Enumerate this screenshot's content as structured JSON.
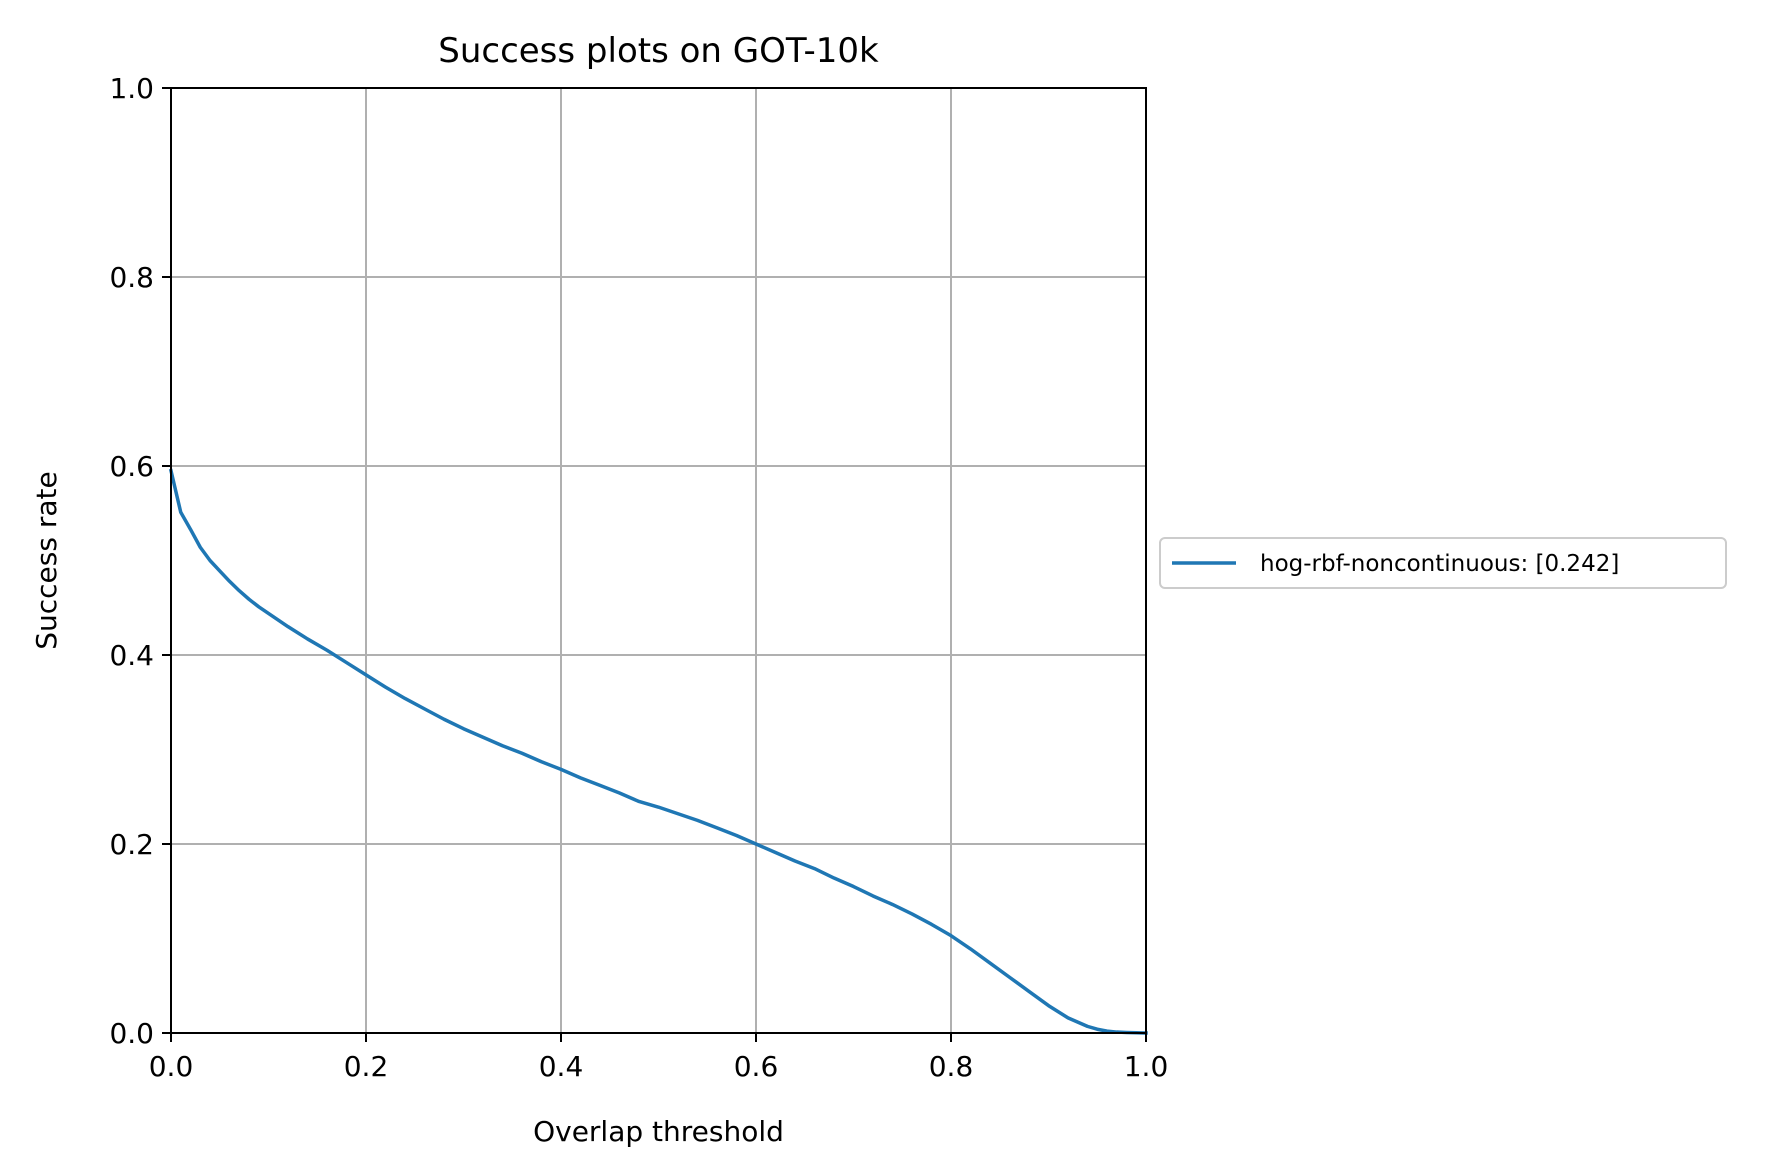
{
  "chart_data": {
    "type": "line",
    "title": "Success plots on GOT-10k",
    "xlabel": "Overlap threshold",
    "ylabel": "Success rate",
    "xlim": [
      0.0,
      1.0
    ],
    "ylim": [
      0.0,
      1.0
    ],
    "xticks": [
      0.0,
      0.2,
      0.4,
      0.6,
      0.8,
      1.0
    ],
    "xtick_labels": [
      "0.0",
      "0.2",
      "0.4",
      "0.6",
      "0.8",
      "1.0"
    ],
    "yticks": [
      0.0,
      0.2,
      0.4,
      0.6,
      0.8,
      1.0
    ],
    "ytick_labels": [
      "0.0",
      "0.2",
      "0.4",
      "0.6",
      "0.8",
      "1.0"
    ],
    "grid": true,
    "legend_position": "right, outside plot",
    "series": [
      {
        "name": "hog-rbf-noncontinuous: [0.242]",
        "color": "#1f77b4",
        "x": [
          0.0,
          0.01,
          0.02,
          0.03,
          0.04,
          0.05,
          0.06,
          0.07,
          0.08,
          0.09,
          0.1,
          0.12,
          0.14,
          0.16,
          0.18,
          0.2,
          0.22,
          0.24,
          0.26,
          0.28,
          0.3,
          0.32,
          0.34,
          0.36,
          0.38,
          0.4,
          0.42,
          0.44,
          0.46,
          0.48,
          0.5,
          0.52,
          0.54,
          0.56,
          0.58,
          0.6,
          0.62,
          0.64,
          0.66,
          0.68,
          0.7,
          0.72,
          0.74,
          0.76,
          0.78,
          0.8,
          0.82,
          0.84,
          0.86,
          0.88,
          0.9,
          0.92,
          0.94,
          0.95,
          0.96,
          0.97,
          0.98,
          0.99,
          1.0
        ],
        "y": [
          0.595,
          0.551,
          0.533,
          0.514,
          0.5,
          0.489,
          0.478,
          0.468,
          0.459,
          0.451,
          0.444,
          0.43,
          0.417,
          0.405,
          0.392,
          0.379,
          0.366,
          0.354,
          0.343,
          0.332,
          0.322,
          0.313,
          0.304,
          0.296,
          0.287,
          0.279,
          0.27,
          0.262,
          0.254,
          0.245,
          0.239,
          0.232,
          0.225,
          0.217,
          0.209,
          0.2,
          0.191,
          0.182,
          0.174,
          0.164,
          0.155,
          0.145,
          0.136,
          0.126,
          0.115,
          0.103,
          0.089,
          0.074,
          0.059,
          0.044,
          0.029,
          0.016,
          0.007,
          0.004,
          0.002,
          0.001,
          0.0005,
          0.0002,
          0.0
        ]
      }
    ]
  }
}
